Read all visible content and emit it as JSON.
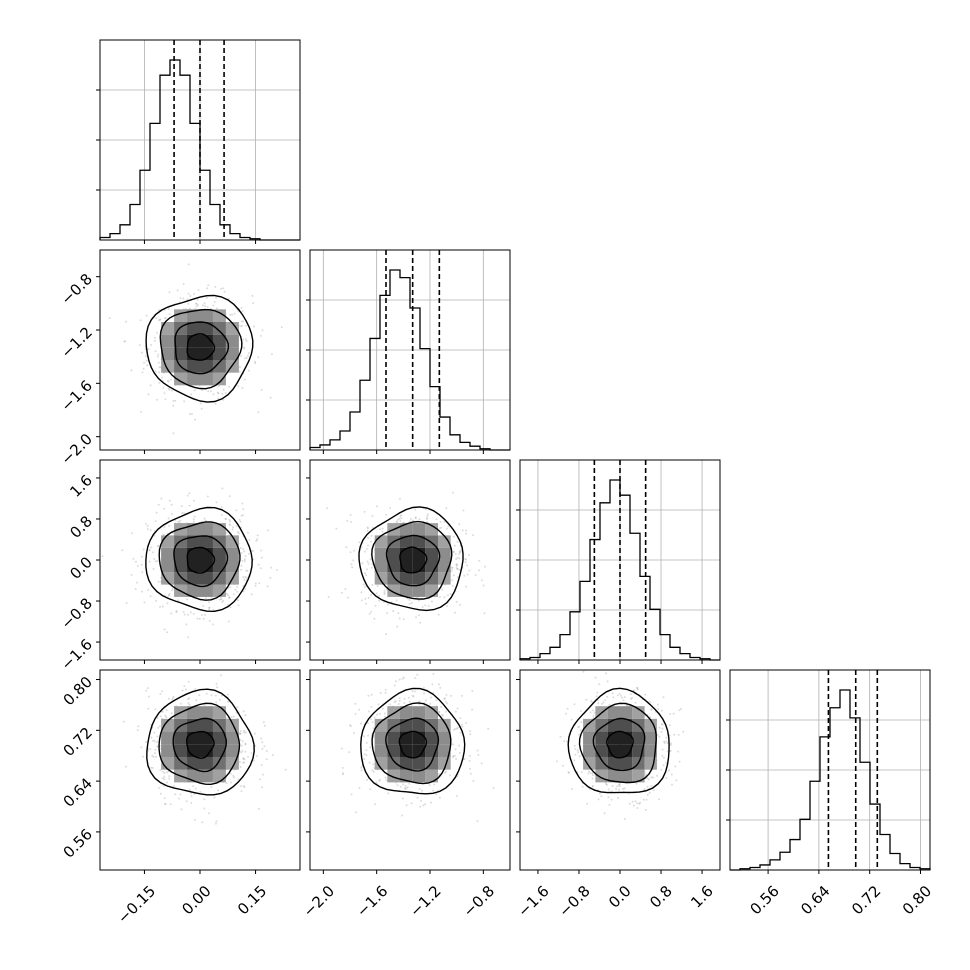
{
  "chart_data": {
    "type": "corner",
    "title": "",
    "n_params": 4,
    "grid": true,
    "colors": {
      "line": "#000000",
      "grid": "#b0b0b0",
      "scatter": "#9a9a9a"
    },
    "params": [
      {
        "index": 0,
        "range": [
          -0.27,
          0.27
        ],
        "ticks": [
          -0.15,
          0.0,
          0.15
        ],
        "tick_labels": [
          "−0.15",
          "0.00",
          "0.15"
        ],
        "mean": 0.0,
        "sigma": 0.07,
        "quantiles": [
          -0.07,
          0.0,
          0.065
        ]
      },
      {
        "index": 1,
        "range": [
          -2.1,
          -0.6
        ],
        "ticks": [
          -2.0,
          -1.6,
          -1.2,
          -0.8
        ],
        "tick_labels": [
          "−2.0",
          "−1.6",
          "−1.2",
          "−0.8"
        ],
        "mean": -1.33,
        "sigma": 0.19,
        "quantiles": [
          -1.53,
          -1.33,
          -1.13
        ]
      },
      {
        "index": 2,
        "range": [
          -1.95,
          1.95
        ],
        "ticks": [
          -1.6,
          -0.8,
          0.0,
          0.8,
          1.6
        ],
        "tick_labels": [
          "−1.6",
          "−0.8",
          "0.0",
          "0.8",
          "1.6"
        ],
        "mean": 0.0,
        "sigma": 0.48,
        "quantiles": [
          -0.5,
          0.0,
          0.5
        ]
      },
      {
        "index": 3,
        "range": [
          0.5,
          0.815
        ],
        "ticks": [
          0.56,
          0.64,
          0.72,
          0.8
        ],
        "tick_labels": [
          "0.56",
          "0.64",
          "0.72",
          "0.80"
        ],
        "mean": 0.698,
        "sigma": 0.04,
        "quantiles": [
          0.655,
          0.698,
          0.732
        ]
      }
    ],
    "diagonal_histograms": [
      {
        "param": 0,
        "bins": 20,
        "counts": [
          2,
          5,
          12,
          28,
          55,
          92,
          130,
          142,
          130,
          92,
          55,
          28,
          12,
          5,
          2,
          1,
          0,
          0,
          0,
          0
        ]
      },
      {
        "param": 1,
        "bins": 20,
        "counts": [
          2,
          4,
          8,
          15,
          30,
          55,
          88,
          122,
          142,
          136,
          112,
          80,
          50,
          26,
          12,
          6,
          3,
          1,
          0,
          0
        ]
      },
      {
        "param": 2,
        "bins": 20,
        "counts": [
          1,
          2,
          5,
          10,
          20,
          38,
          62,
          95,
          124,
          142,
          130,
          100,
          66,
          40,
          20,
          10,
          5,
          2,
          1,
          0
        ]
      },
      {
        "param": 3,
        "bins": 20,
        "counts": [
          0,
          1,
          2,
          4,
          8,
          14,
          24,
          40,
          70,
          105,
          128,
          142,
          120,
          85,
          52,
          28,
          13,
          5,
          2,
          1
        ]
      }
    ]
  }
}
